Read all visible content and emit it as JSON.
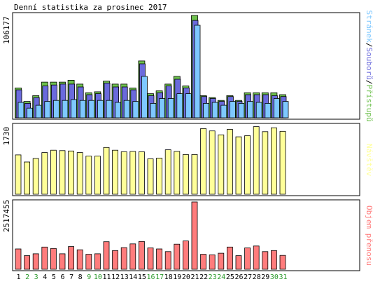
{
  "title": "Denní statistika za prosinec 2017",
  "colors": {
    "background": "#ffffff",
    "panel_border": "#000000",
    "accesses": "#6dc04d",
    "files": "#6a6adc",
    "pages": "#7ec8ff",
    "visits": "#ffff99",
    "kbytes": "#ff7c7c",
    "weekend_label": "#2c9a2c",
    "weekday_label": "#000000"
  },
  "chart_data": [
    {
      "type": "bar",
      "panel": "top",
      "ymax_label": "106177",
      "ylim": [
        0,
        106177
      ],
      "legend": {
        "pages": "Stránek",
        "files": "Souborů",
        "accesses": "Přístupů",
        "sep": "/"
      },
      "categories": [
        "1",
        "2",
        "3",
        "4",
        "5",
        "6",
        "7",
        "8",
        "9",
        "10",
        "11",
        "12",
        "13",
        "14",
        "15",
        "16",
        "17",
        "18",
        "19",
        "20",
        "21",
        "22",
        "23",
        "24",
        "25",
        "26",
        "27",
        "28",
        "29",
        "30",
        "31"
      ],
      "weekend": [
        false,
        true,
        true,
        false,
        false,
        false,
        false,
        false,
        true,
        true,
        false,
        false,
        false,
        false,
        false,
        true,
        true,
        false,
        false,
        false,
        false,
        false,
        true,
        true,
        false,
        false,
        false,
        false,
        false,
        true,
        true
      ],
      "series": [
        {
          "name": "Přístupů",
          "key": "accesses",
          "values": [
            31000,
            17000,
            23000,
            37000,
            37000,
            37000,
            39000,
            35000,
            26000,
            27000,
            38000,
            35000,
            35000,
            31000,
            59000,
            25000,
            28000,
            35000,
            43000,
            33000,
            106177,
            23000,
            21000,
            18000,
            23000,
            18000,
            26000,
            26000,
            26000,
            26000,
            24000
          ]
        },
        {
          "name": "Souborů",
          "key": "files",
          "values": [
            29000,
            15000,
            21000,
            33000,
            34000,
            35000,
            35000,
            32000,
            24000,
            25000,
            36000,
            32000,
            32000,
            29000,
            56000,
            23000,
            26000,
            33000,
            40000,
            31000,
            101000,
            22000,
            20000,
            17000,
            22000,
            17000,
            24000,
            24000,
            24000,
            23000,
            22000
          ]
        },
        {
          "name": "Stránek",
          "key": "pages",
          "values": [
            16000,
            10000,
            13000,
            17000,
            18000,
            18000,
            19000,
            18000,
            18000,
            18000,
            18000,
            16000,
            18000,
            17000,
            43000,
            15000,
            20000,
            20000,
            25000,
            25000,
            96000,
            15000,
            16000,
            13000,
            17000,
            15000,
            17000,
            16000,
            15000,
            20000,
            17000
          ]
        }
      ]
    },
    {
      "type": "bar",
      "panel": "middle",
      "ymax_label": "1730",
      "ylim": [
        0,
        1730
      ],
      "legend": "Návštěv",
      "categories": [
        "1",
        "2",
        "3",
        "4",
        "5",
        "6",
        "7",
        "8",
        "9",
        "10",
        "11",
        "12",
        "13",
        "14",
        "15",
        "16",
        "17",
        "18",
        "19",
        "20",
        "21",
        "22",
        "23",
        "24",
        "25",
        "26",
        "27",
        "28",
        "29",
        "30",
        "31"
      ],
      "series": [
        {
          "name": "Návštěv",
          "key": "visits",
          "values": [
            1000,
            820,
            910,
            1060,
            1120,
            1110,
            1100,
            1060,
            970,
            970,
            1190,
            1120,
            1080,
            1090,
            1080,
            900,
            920,
            1130,
            1090,
            1010,
            1010,
            1670,
            1610,
            1510,
            1650,
            1460,
            1490,
            1720,
            1590,
            1690,
            1600
          ]
        }
      ]
    },
    {
      "type": "bar",
      "panel": "bottom",
      "ymax_label": "2517455",
      "ylim": [
        0,
        2517455
      ],
      "legend": "Objem přenosu",
      "categories": [
        "1",
        "2",
        "3",
        "4",
        "5",
        "6",
        "7",
        "8",
        "9",
        "10",
        "11",
        "12",
        "13",
        "14",
        "15",
        "16",
        "17",
        "18",
        "19",
        "20",
        "21",
        "22",
        "23",
        "24",
        "25",
        "26",
        "27",
        "28",
        "29",
        "30",
        "31"
      ],
      "series": [
        {
          "name": "Objem přenosu",
          "key": "kbytes",
          "values": [
            760000,
            510000,
            580000,
            830000,
            780000,
            580000,
            850000,
            730000,
            560000,
            580000,
            1030000,
            700000,
            810000,
            950000,
            1040000,
            800000,
            760000,
            660000,
            940000,
            1060000,
            2517455,
            560000,
            540000,
            600000,
            830000,
            510000,
            800000,
            870000,
            660000,
            700000,
            520000
          ]
        }
      ]
    }
  ]
}
